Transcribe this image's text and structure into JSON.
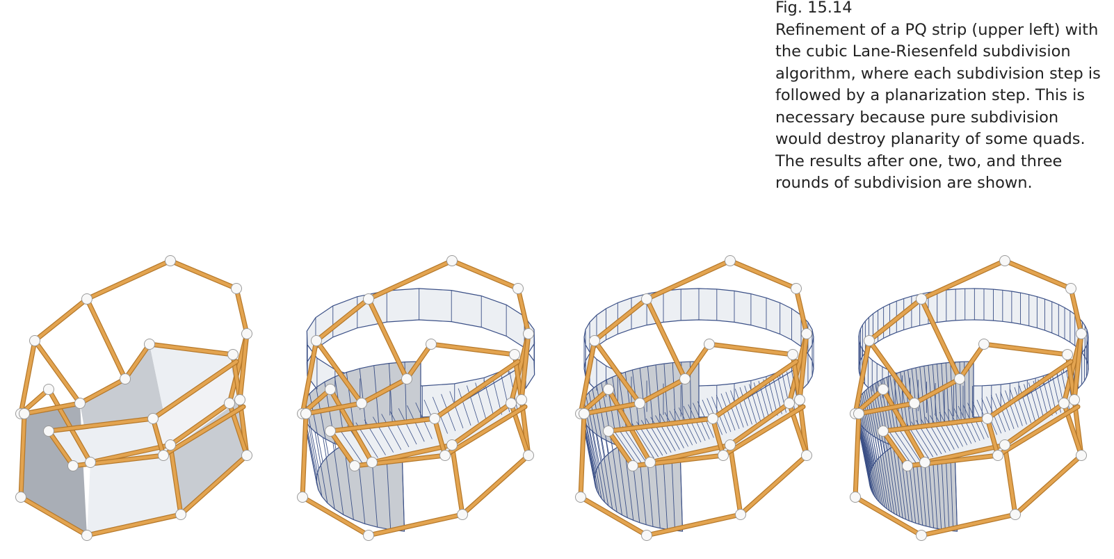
{
  "figure": {
    "label": "Fig. 15.14",
    "caption": "Refinement of a PQ strip (upper left) with the cubic Lane-Riesenfeld subdivision algorithm, where each subdivision step is followed by a planarization step. This is necessary because pure subdivision would destroy planarity of some quads. The results after one, two, and three rounds of subdivision are shown."
  },
  "panels": [
    {
      "id": "original",
      "subdivision_rounds": 0,
      "segments": 0
    },
    {
      "id": "round-1",
      "subdivision_rounds": 1,
      "segments": 22
    },
    {
      "id": "round-2",
      "subdivision_rounds": 2,
      "segments": 40
    },
    {
      "id": "round-3",
      "subdivision_rounds": 3,
      "segments": 76
    }
  ],
  "colors": {
    "rod": "#e3a450",
    "rod_dark": "#b5782a",
    "joint": "#f8f8f8",
    "face_light": "#eceff3",
    "face_mid": "#c8ccd2",
    "face_dark": "#a9aeb6",
    "mesh_line": "#3a4f86"
  }
}
